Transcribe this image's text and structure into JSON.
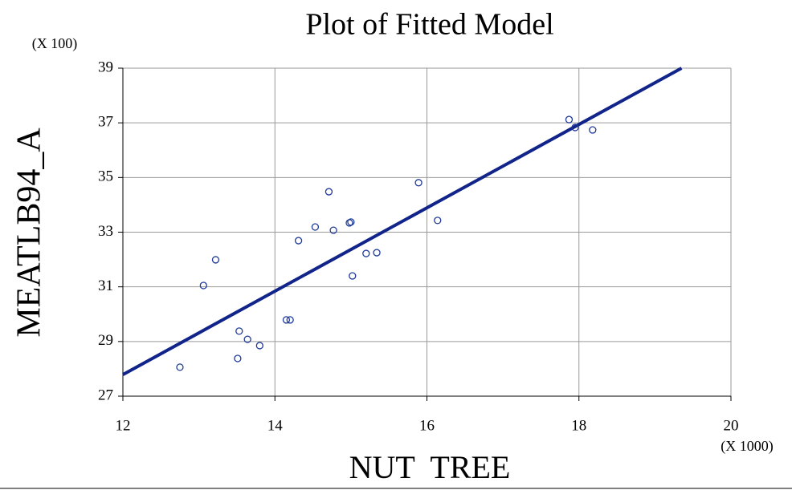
{
  "chart_data": {
    "type": "scatter",
    "title": "Plot of Fitted Model",
    "x_label": "NUT  TREE",
    "y_label": "MEATLB94_A",
    "x_multiplier": "(X 1000)",
    "y_multiplier": "(X 100)",
    "xlim": [
      12,
      20
    ],
    "xticks": [
      12,
      14,
      16,
      18,
      20
    ],
    "ylim": [
      27,
      39
    ],
    "yticks": [
      27,
      29,
      31,
      33,
      35,
      37,
      39
    ],
    "grid": true,
    "points": {
      "color": "#1f3a9a",
      "x": [
        17.87,
        17.95,
        18.18,
        15.89,
        16.14,
        14.71,
        14.53,
        14.77,
        14.98,
        15.0,
        14.31,
        15.2,
        15.34,
        15.02,
        13.22,
        13.06,
        14.15,
        14.2,
        13.53,
        13.64,
        13.8,
        13.51,
        12.75
      ],
      "values": [
        37.12,
        36.83,
        36.74,
        34.81,
        33.43,
        34.48,
        33.19,
        33.07,
        33.34,
        33.37,
        32.69,
        32.22,
        32.25,
        31.4,
        31.99,
        31.05,
        29.79,
        29.79,
        29.38,
        29.08,
        28.85,
        28.38,
        28.06
      ]
    },
    "fit": {
      "color": "#10248a",
      "x": [
        12,
        19.35
      ],
      "values": [
        27.79,
        39.0
      ]
    }
  }
}
